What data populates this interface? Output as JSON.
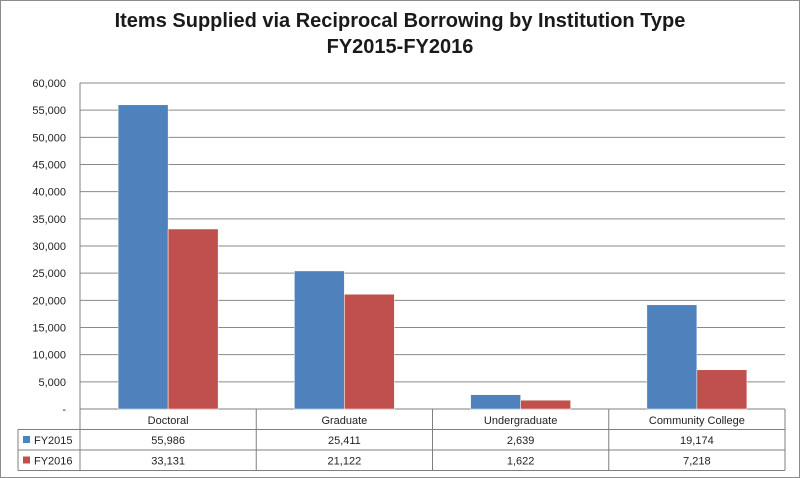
{
  "chart_data": {
    "type": "bar",
    "title": [
      "Items Supplied via Reciprocal Borrowing by Institution Type",
      "FY2015-FY2016"
    ],
    "categories": [
      "Doctoral",
      "Graduate",
      "Undergraduate",
      "Community College"
    ],
    "series": [
      {
        "name": "FY2015",
        "color": "#4f81bd",
        "values": [
          55986,
          25411,
          2639,
          19174
        ],
        "labels": [
          "55,986",
          "25,411",
          "2,639",
          "19,174"
        ]
      },
      {
        "name": "FY2016",
        "color": "#c0504d",
        "values": [
          33131,
          21122,
          1622,
          7218
        ],
        "labels": [
          "33,131",
          "21,122",
          "1,622",
          "7,218"
        ]
      }
    ],
    "ylim": [
      0,
      60000
    ],
    "yticks": [
      0,
      5000,
      10000,
      15000,
      20000,
      25000,
      30000,
      35000,
      40000,
      45000,
      50000,
      55000,
      60000
    ],
    "ytick_labels": [
      "-",
      "5,000",
      "10,000",
      "15,000",
      "20,000",
      "25,000",
      "30,000",
      "35,000",
      "40,000",
      "45,000",
      "50,000",
      "55,000",
      "60,000"
    ],
    "grid": true,
    "legend": "data-table"
  }
}
